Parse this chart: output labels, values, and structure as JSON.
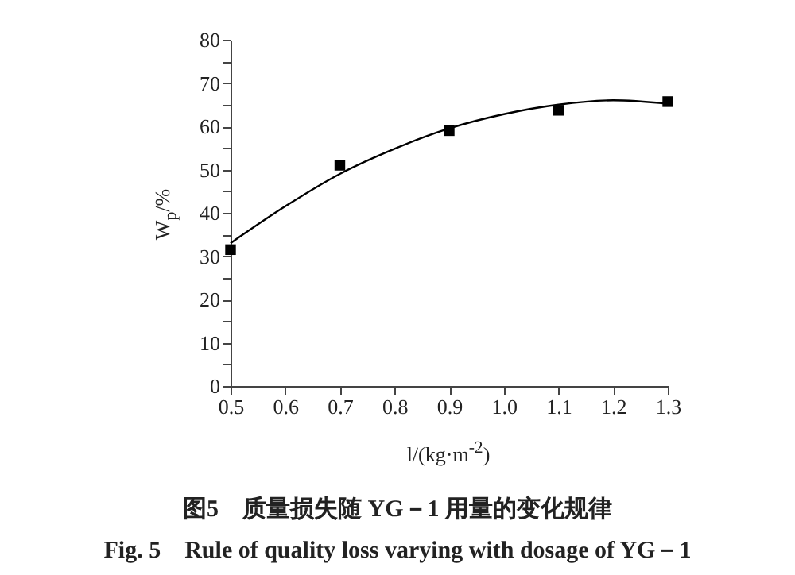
{
  "chart_data": {
    "type": "scatter",
    "xlabel": "l/(kg·m$^{-2}$)",
    "ylabel": "W$_{p}$/%",
    "x": [
      0.5,
      0.7,
      0.9,
      1.1,
      1.3
    ],
    "series": [
      {
        "color": "#000000",
        "marker": "square",
        "values": [
          31.5,
          51,
          59,
          63.7,
          65.7
        ]
      },
      {
        "type": "line",
        "color": "#000000",
        "line_style": "solid",
        "x": [
          0.5,
          0.6,
          0.7,
          0.8,
          0.9,
          1.0,
          1.1,
          1.2,
          1.3
        ],
        "values": [
          33,
          41.5,
          49,
          54.8,
          59.5,
          62.8,
          65,
          66,
          65.2
        ]
      }
    ],
    "xlim": [
      0.5,
      1.3
    ],
    "xticks": [
      0.5,
      0.6,
      0.7,
      0.8,
      0.9,
      {
        "value": 1.0,
        "label": "1.0"
      },
      1.1,
      1.2,
      1.3
    ],
    "ylim": [
      0,
      80
    ],
    "yticks": [
      0,
      {
        "value": 5,
        "label": null
      },
      10,
      {
        "value": 15,
        "label": null
      },
      20,
      {
        "value": 25,
        "label": null
      },
      30,
      {
        "value": 35,
        "label": null
      },
      40,
      {
        "value": 45,
        "label": null
      },
      50,
      {
        "value": 55,
        "label": null
      },
      60,
      {
        "value": 65,
        "label": null
      },
      70,
      {
        "value": 75,
        "label": null
      },
      80
    ],
    "grid": false,
    "annotations": [
      "图5　质量损失随 YG－1 用量的变化规律",
      "Fig. 5　Rule of quality loss varying with dosage of YG－1"
    ]
  }
}
